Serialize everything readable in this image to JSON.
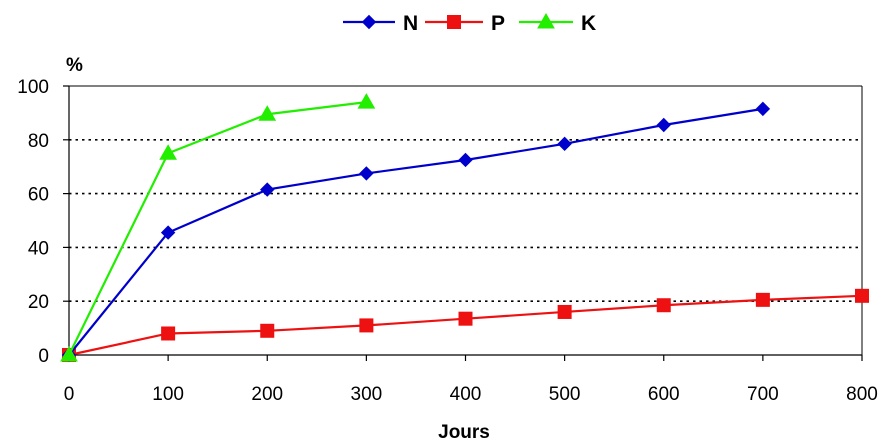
{
  "chart_data": {
    "type": "line",
    "xlabel": "Jours",
    "ylabel": "%",
    "xlim": [
      0,
      800
    ],
    "ylim": [
      0,
      100
    ],
    "xticks": [
      0,
      100,
      200,
      300,
      400,
      500,
      600,
      700,
      800
    ],
    "yticks": [
      0,
      20,
      40,
      60,
      80,
      100
    ],
    "grid": "horizontal dotted",
    "legend_position": "top-center",
    "series": [
      {
        "name": "N",
        "color": "#0000CC",
        "marker": "diamond",
        "x": [
          0,
          100,
          200,
          300,
          400,
          500,
          600,
          700
        ],
        "values": [
          0,
          45.5,
          61.5,
          67.5,
          72.5,
          78.5,
          85.5,
          91.5
        ]
      },
      {
        "name": "P",
        "color": "#EE1111",
        "marker": "square",
        "x": [
          0,
          100,
          200,
          300,
          400,
          500,
          600,
          700,
          800
        ],
        "values": [
          0,
          8,
          9,
          11,
          13.5,
          16,
          18.5,
          20.5,
          22
        ]
      },
      {
        "name": "K",
        "color": "#22EE00",
        "marker": "triangle",
        "x": [
          0,
          100,
          200,
          300
        ],
        "values": [
          0,
          75,
          89.5,
          94
        ]
      }
    ]
  }
}
